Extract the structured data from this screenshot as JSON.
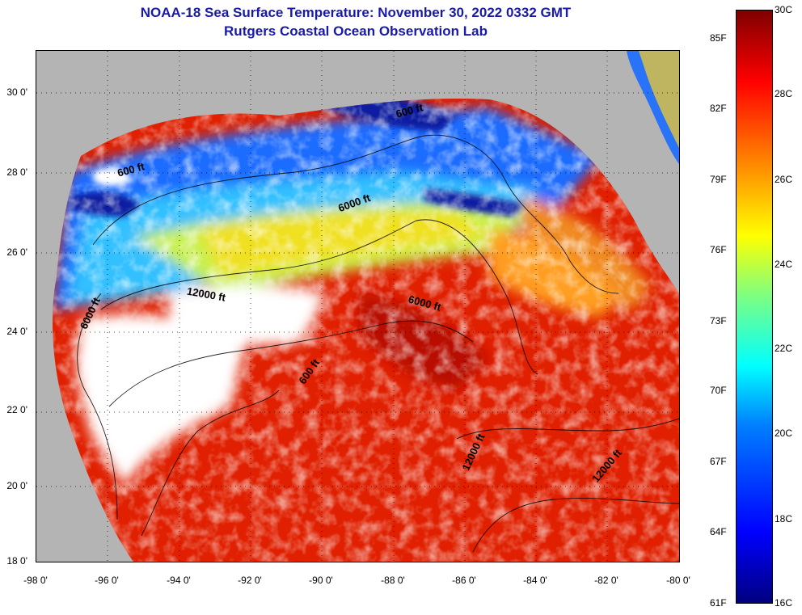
{
  "title": {
    "line1": "NOAA-18 Sea Surface Temperature:  November 30, 2022 0332 GMT",
    "line2": "Rutgers Coastal Ocean Observation Lab"
  },
  "map": {
    "lat_labels": [
      "30 0'",
      "28 0'",
      "26 0'",
      "24 0'",
      "22 0'",
      "20 0'",
      "18 0'"
    ],
    "lat_values": [
      30,
      28,
      26,
      24,
      22,
      20,
      18
    ],
    "lon_labels": [
      "-98 0'",
      "-96 0'",
      "-94 0'",
      "-92 0'",
      "-90 0'",
      "-88 0'",
      "-86 0'",
      "-84 0'",
      "-82 0'",
      "-80 0'"
    ],
    "lon_values": [
      -98,
      -96,
      -94,
      -92,
      -90,
      -88,
      -86,
      -84,
      -82,
      -80
    ],
    "lat_range": [
      18,
      31
    ],
    "lon_range": [
      -98,
      -80
    ],
    "contour_labels": [
      {
        "text": "600 ft",
        "lon": -95.7,
        "lat": 27.8,
        "rot": -15
      },
      {
        "text": "600 ft",
        "lon": -87.9,
        "lat": 29.3,
        "rot": -15
      },
      {
        "text": "6000 ft",
        "lon": -89.5,
        "lat": 26.9,
        "rot": -20
      },
      {
        "text": "12000 ft",
        "lon": -93.8,
        "lat": 24.8,
        "rot": 10
      },
      {
        "text": "6000 ft",
        "lon": -96.6,
        "lat": 23.9,
        "rot": -65
      },
      {
        "text": "6000 ft",
        "lon": -87.6,
        "lat": 24.6,
        "rot": 15
      },
      {
        "text": "600 ft",
        "lon": -90.5,
        "lat": 22.5,
        "rot": -55
      },
      {
        "text": "12000 ft",
        "lon": -85.9,
        "lat": 20.3,
        "rot": -65
      },
      {
        "text": "12000 ft",
        "lon": -82.3,
        "lat": 20.0,
        "rot": -50
      }
    ],
    "colors": {
      "land": "#b4b4b4",
      "cloud": "#ffffff",
      "grid": "#000000"
    }
  },
  "colorbar": {
    "celsius_labels": [
      "30C",
      "28C",
      "26C",
      "24C",
      "22C",
      "20C",
      "18C",
      "16C"
    ],
    "celsius_values": [
      30,
      28,
      26,
      24,
      22,
      20,
      18,
      16
    ],
    "fahrenheit_labels": [
      "85F",
      "82F",
      "79F",
      "76F",
      "73F",
      "70F",
      "67F",
      "64F",
      "61F"
    ],
    "fahrenheit_values": [
      85,
      82,
      79,
      76,
      73,
      70,
      67,
      64,
      61
    ],
    "range_c": [
      16,
      30
    ],
    "stops": [
      "#00007f",
      "#0000ff",
      "#007fff",
      "#00ffff",
      "#7fff7f",
      "#ffff00",
      "#ff7f00",
      "#ff0000",
      "#7f0000"
    ]
  }
}
